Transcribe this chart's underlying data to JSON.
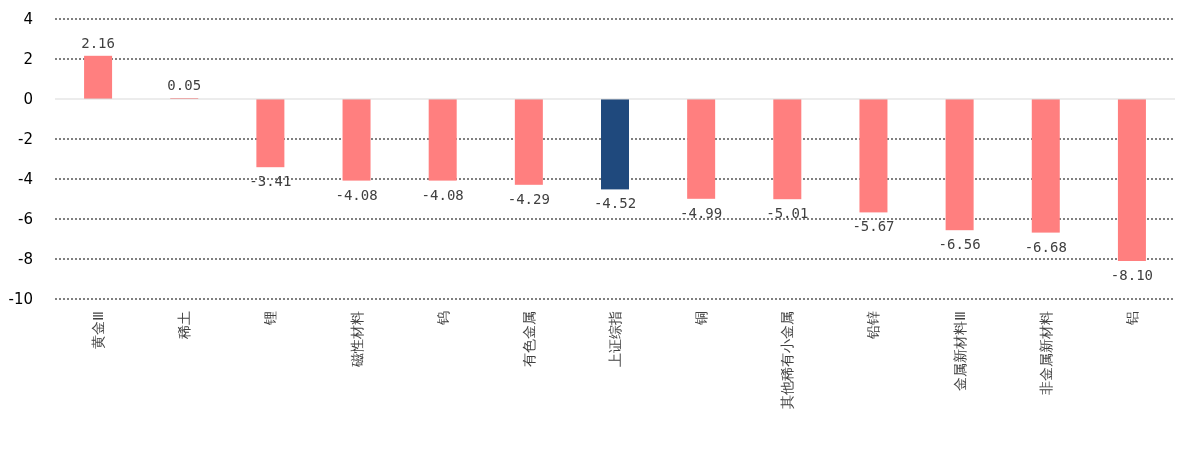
{
  "chart_data": {
    "type": "bar",
    "categories": [
      "黄金Ⅲ",
      "稀土",
      "锂",
      "磁性材料",
      "钨",
      "有色金属",
      "上证综指",
      "铜",
      "其他稀有小金属",
      "铅锌",
      "金属新材料Ⅲ",
      "非金属新材料",
      "铝"
    ],
    "values": [
      2.16,
      0.05,
      -3.41,
      -4.08,
      -4.08,
      -4.29,
      -4.52,
      -4.99,
      -5.01,
      -5.67,
      -6.56,
      -6.68,
      -8.1
    ],
    "value_labels": [
      "2.16",
      "0.05",
      "-3.41",
      "-4.08",
      "-4.08",
      "-4.29",
      "-4.52",
      "-4.99",
      "-5.01",
      "-5.67",
      "-6.56",
      "-6.68",
      "-8.10"
    ],
    "colors": [
      "#ff7f7f",
      "#ff7f7f",
      "#ff7f7f",
      "#ff7f7f",
      "#ff7f7f",
      "#ff7f7f",
      "#1f497d",
      "#ff7f7f",
      "#ff7f7f",
      "#ff7f7f",
      "#ff7f7f",
      "#ff7f7f",
      "#ff7f7f"
    ],
    "ylim": [
      -10,
      4
    ],
    "yticks": [
      -10,
      -8,
      -6,
      -4,
      -2,
      0,
      2,
      4
    ],
    "grid": "y"
  }
}
